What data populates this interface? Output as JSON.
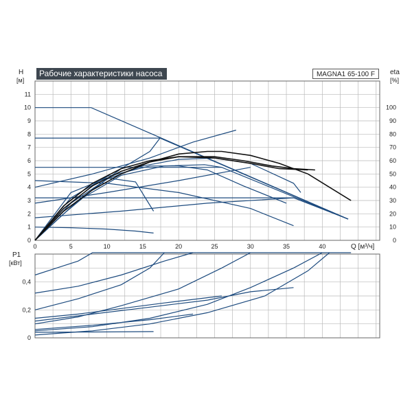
{
  "header": {
    "title": "Рабочие характеристики насоса",
    "model": "MAGNA1 65-100 F"
  },
  "colors": {
    "curve": "#1c4a7e",
    "curve_black": "#111111",
    "grid": "#b9b9b9",
    "frame": "#666666",
    "title_bg": "#3e4750"
  },
  "chart_data": [
    {
      "type": "line",
      "ylabel": "H",
      "yunit": "[м]",
      "y2label": "eta",
      "y2unit": "[%]",
      "xlabel": "Q [м³/ч]",
      "xlim": [
        0,
        48
      ],
      "ylim": [
        0,
        12
      ],
      "y2lim": [
        0,
        120
      ],
      "xticks": [
        "0",
        "5",
        "10",
        "15",
        "20",
        "25",
        "30",
        "35",
        "40"
      ],
      "yticks": [
        "0",
        "1",
        "2",
        "3",
        "4",
        "5",
        "6",
        "7",
        "8",
        "9",
        "10",
        "11"
      ],
      "y2ticks": [
        "0",
        "10",
        "20",
        "30",
        "40",
        "50",
        "60",
        "70",
        "80",
        "90",
        "100"
      ],
      "grid": true,
      "series": [
        {
          "points": [
            [
              0,
              10
            ],
            [
              7.8,
              10
            ],
            [
              43.6,
              1.6
            ]
          ]
        },
        {
          "points": [
            [
              0,
              7.7
            ],
            [
              17.4,
              7.7
            ],
            [
              43.6,
              1.6
            ]
          ]
        },
        {
          "points": [
            [
              0,
              5.5
            ],
            [
              26,
              5.5
            ],
            [
              43.6,
              1.6
            ]
          ]
        },
        {
          "points": [
            [
              0,
              3.2
            ],
            [
              36,
              3.2
            ],
            [
              43.6,
              1.6
            ]
          ]
        },
        {
          "points": [
            [
              0,
              0
            ],
            [
              4,
              2
            ],
            [
              8,
              3.8
            ],
            [
              12,
              5.4
            ],
            [
              16,
              6.7
            ],
            [
              17.4,
              7.7
            ]
          ]
        },
        {
          "points": [
            [
              0,
              0
            ],
            [
              6,
              3
            ],
            [
              12,
              4.9
            ],
            [
              18,
              5.6
            ],
            [
              23.6,
              5.7
            ],
            [
              26,
              5.5
            ]
          ]
        },
        {
          "points": [
            [
              0,
              1.7
            ],
            [
              12,
              2.2
            ],
            [
              24,
              2.8
            ],
            [
              36,
              3.2
            ]
          ]
        },
        {
          "points": [
            [
              0,
              2.8
            ],
            [
              10,
              3.6
            ],
            [
              20,
              4.5
            ],
            [
              30,
              5.5
            ]
          ]
        },
        {
          "points": [
            [
              0,
              4
            ],
            [
              8,
              5
            ],
            [
              16,
              6.2
            ],
            [
              22,
              7.4
            ],
            [
              28,
              8.3
            ]
          ]
        },
        {
          "points": [
            [
              0,
              4.5
            ],
            [
              10,
              4.3
            ],
            [
              20,
              3.6
            ],
            [
              30,
              2.4
            ],
            [
              36,
              1.1
            ]
          ]
        },
        {
          "points": [
            [
              0,
              1
            ],
            [
              5,
              0.95
            ],
            [
              10,
              0.85
            ],
            [
              14,
              0.7
            ],
            [
              16.5,
              0.55
            ]
          ]
        },
        {
          "points": [
            [
              0,
              0
            ],
            [
              5,
              3.6
            ],
            [
              10,
              4.7
            ],
            [
              14,
              4.4
            ],
            [
              16.5,
              2.2
            ]
          ]
        },
        {
          "points": [
            [
              0,
              0
            ],
            [
              5,
              3.2
            ],
            [
              10,
              4.8
            ],
            [
              16,
              5.6
            ],
            [
              20,
              5.6
            ],
            [
              24,
              5.3
            ],
            [
              29,
              4.1
            ],
            [
              35,
              2.8
            ]
          ]
        },
        {
          "points": [
            [
              0,
              0
            ],
            [
              5,
              2.8
            ],
            [
              10,
              4.6
            ],
            [
              15,
              5.6
            ],
            [
              20,
              6.1
            ],
            [
              25,
              6.2
            ],
            [
              30,
              5.8
            ],
            [
              36,
              4.3
            ],
            [
              37,
              3.6
            ]
          ]
        }
      ],
      "eff_curves": [
        {
          "points": [
            [
              0,
              0
            ],
            [
              4,
              2.2
            ],
            [
              8,
              3.8
            ],
            [
              12,
              5.0
            ],
            [
              16,
              5.9
            ],
            [
              20,
              6.5
            ],
            [
              24,
              6.7
            ],
            [
              26,
              6.7
            ],
            [
              30,
              6.4
            ],
            [
              34,
              5.8
            ],
            [
              38,
              5.0
            ],
            [
              41,
              4.0
            ],
            [
              44,
              3.0
            ]
          ]
        },
        {
          "points": [
            [
              0,
              0
            ],
            [
              4,
              2.4
            ],
            [
              8,
              4.1
            ],
            [
              12,
              5.2
            ],
            [
              16,
              5.9
            ],
            [
              20,
              6.3
            ],
            [
              25,
              6.3
            ],
            [
              29,
              6.0
            ],
            [
              33,
              5.6
            ],
            [
              36,
              5.4
            ],
            [
              39,
              5.3
            ]
          ]
        },
        {
          "points": [
            [
              0,
              0
            ],
            [
              4,
              2.6
            ],
            [
              8,
              4.3
            ],
            [
              12,
              5.4
            ],
            [
              16,
              6.0
            ],
            [
              20,
              6.3
            ],
            [
              25,
              6.2
            ],
            [
              30,
              5.8
            ],
            [
              34,
              5.4
            ],
            [
              38,
              5.3
            ]
          ]
        }
      ]
    },
    {
      "type": "line",
      "ylabel": "P1",
      "yunit": "[кВт]",
      "xlim": [
        0,
        48
      ],
      "ylim": [
        0,
        0.6
      ],
      "yticks": [
        "0",
        "0,2",
        "0,4"
      ],
      "grid": true,
      "series": [
        {
          "points": [
            [
              0,
              0.45
            ],
            [
              3,
              0.5
            ],
            [
              6,
              0.55
            ],
            [
              8,
              0.61
            ],
            [
              44,
              0.61
            ]
          ]
        },
        {
          "points": [
            [
              0,
              0.32
            ],
            [
              6,
              0.37
            ],
            [
              12,
              0.45
            ],
            [
              18,
              0.55
            ],
            [
              22,
              0.61
            ]
          ]
        },
        {
          "points": [
            [
              0,
              0.2
            ],
            [
              6,
              0.28
            ],
            [
              12,
              0.38
            ],
            [
              16,
              0.5
            ],
            [
              18,
              0.61
            ]
          ]
        },
        {
          "points": [
            [
              0,
              0.1
            ],
            [
              6,
              0.15
            ],
            [
              12,
              0.23
            ],
            [
              20,
              0.35
            ],
            [
              26,
              0.5
            ],
            [
              30,
              0.61
            ]
          ]
        },
        {
          "points": [
            [
              0,
              0.05
            ],
            [
              8,
              0.08
            ],
            [
              16,
              0.14
            ],
            [
              24,
              0.24
            ],
            [
              30,
              0.36
            ],
            [
              36,
              0.5
            ],
            [
              40,
              0.61
            ]
          ]
        },
        {
          "points": [
            [
              0,
              0.02
            ],
            [
              8,
              0.05
            ],
            [
              16,
              0.1
            ],
            [
              24,
              0.18
            ],
            [
              32,
              0.3
            ],
            [
              38,
              0.48
            ],
            [
              41,
              0.61
            ]
          ]
        },
        {
          "points": [
            [
              0,
              0.12
            ],
            [
              8,
              0.17
            ],
            [
              16,
              0.22
            ],
            [
              24,
              0.27
            ],
            [
              30,
              0.33
            ],
            [
              36,
              0.36
            ]
          ]
        },
        {
          "points": [
            [
              0,
              0.14
            ],
            [
              6,
              0.17
            ],
            [
              12,
              0.21
            ],
            [
              18,
              0.25
            ],
            [
              26,
              0.3
            ]
          ]
        },
        {
          "points": [
            [
              0,
              0.06
            ],
            [
              8,
              0.09
            ],
            [
              16,
              0.13
            ],
            [
              22,
              0.17
            ]
          ]
        },
        {
          "points": [
            [
              0,
              0.04
            ],
            [
              8,
              0.042
            ],
            [
              16.5,
              0.045
            ]
          ]
        }
      ]
    }
  ]
}
